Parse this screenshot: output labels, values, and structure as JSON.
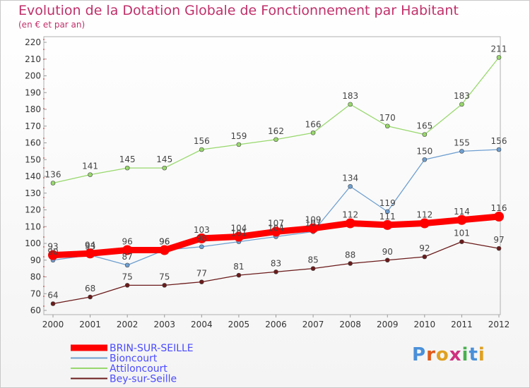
{
  "chart_data": {
    "type": "line",
    "title": "Evolution de la Dotation Globale de Fonctionnement par Habitant",
    "subtitle": "(en € et par an)",
    "x": [
      "2000",
      "2001",
      "2002",
      "2003",
      "2004",
      "2005",
      "2006",
      "2007",
      "2008",
      "2009",
      "2010",
      "2011",
      "2012"
    ],
    "ylim": [
      60,
      220
    ],
    "yticks": [
      60,
      70,
      80,
      90,
      100,
      110,
      120,
      130,
      140,
      150,
      160,
      170,
      180,
      190,
      200,
      210,
      220
    ],
    "grid": false,
    "legend_position": "bottom-left",
    "series": [
      {
        "name": "BRIN-SUR-SEILLE",
        "color": "#ff0000",
        "values": [
          93,
          94,
          96,
          96,
          103,
          104,
          107,
          109,
          112,
          111,
          112,
          114,
          116
        ]
      },
      {
        "name": "Bioncourt",
        "color": "#6e9fd0",
        "values": [
          90,
          93,
          87,
          96,
          98,
          101,
          104,
          107,
          134,
          119,
          150,
          155,
          156
        ]
      },
      {
        "name": "Attiloncourt",
        "color": "#98d86c",
        "values": [
          136,
          141,
          145,
          145,
          156,
          159,
          162,
          166,
          183,
          170,
          165,
          183,
          211
        ]
      },
      {
        "name": "Bey-sur-Seille",
        "color": "#6b1a1a",
        "values": [
          64,
          68,
          75,
          75,
          77,
          81,
          83,
          85,
          88,
          90,
          92,
          101,
          97
        ]
      }
    ]
  },
  "logo": {
    "letters": [
      "P",
      "r",
      "o",
      "x",
      "i",
      "t",
      "i"
    ],
    "colors": [
      "#4a90d9",
      "#e05a1a",
      "#e0a020",
      "#d03080",
      "#4ab050",
      "#4a90d9",
      "#e0a020"
    ]
  }
}
